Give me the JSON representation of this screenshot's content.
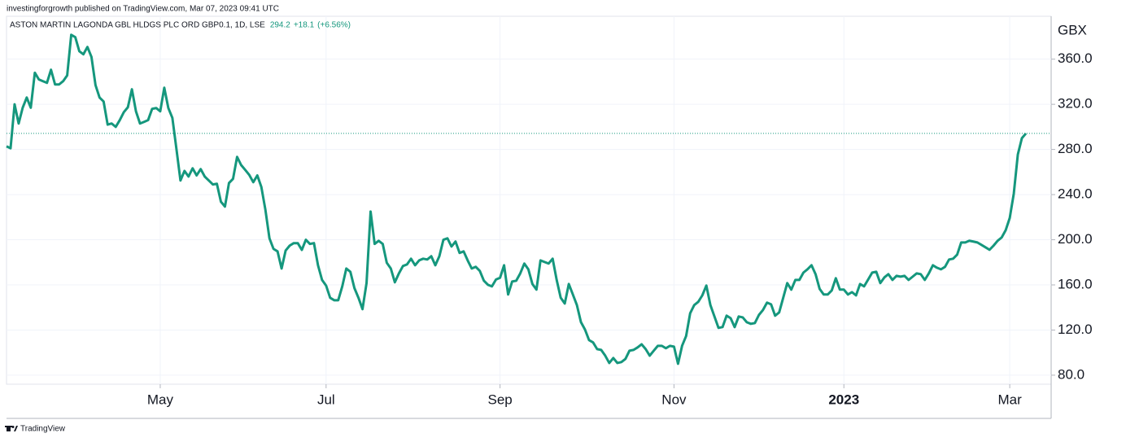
{
  "header": "investingforgrowth published on TradingView.com, Mar 07, 2023 09:41 UTC",
  "legend": {
    "symbol": "ASTON MARTIN LAGONDA GBL HLDGS PLC ORD GBP0.1, 1D, LSE",
    "price": "294.2",
    "change": "+18.1",
    "change_pct": "(+6.56%)"
  },
  "footer": "TradingView",
  "chart_data": {
    "type": "line",
    "ylabel": "GBX",
    "categories": [
      null,
      null,
      null,
      null,
      null,
      null,
      null,
      null,
      null,
      null,
      null,
      null,
      null,
      null,
      null,
      null,
      null,
      null,
      null,
      null,
      null,
      null,
      null,
      null,
      null,
      null,
      null,
      null,
      null,
      null,
      null,
      null,
      null,
      null,
      null,
      null,
      null,
      null,
      "May",
      null,
      null,
      null,
      null,
      null,
      null,
      null,
      null,
      null,
      null,
      null,
      null,
      null,
      null,
      null,
      null,
      null,
      null,
      null,
      null,
      null,
      null,
      null,
      null,
      null,
      null,
      null,
      null,
      null,
      null,
      null,
      null,
      null,
      null,
      null,
      null,
      null,
      null,
      null,
      null,
      "Jul",
      null,
      null,
      null,
      null,
      null,
      null,
      null,
      null,
      null,
      null,
      null,
      null,
      null,
      null,
      null,
      null,
      null,
      null,
      null,
      null,
      null,
      null,
      null,
      null,
      null,
      null,
      null,
      null,
      null,
      null,
      null,
      null,
      null,
      null,
      null,
      null,
      null,
      null,
      null,
      null,
      null,
      null,
      "Sep",
      null,
      null,
      null,
      null,
      null,
      null,
      null,
      null,
      null,
      null,
      null,
      null,
      null,
      null,
      null,
      null,
      null,
      null,
      null,
      null,
      null,
      null,
      null,
      null,
      null,
      null,
      null,
      null,
      null,
      null,
      null,
      null,
      null,
      null,
      null,
      null,
      null,
      null,
      null,
      null,
      null,
      null,
      "Nov",
      null,
      null,
      null,
      null,
      null,
      null,
      null,
      null,
      null,
      null,
      null,
      null,
      null,
      null,
      null,
      null,
      null,
      null,
      null,
      null,
      null,
      null,
      null,
      null,
      null,
      null,
      null,
      null,
      null,
      null,
      null,
      null,
      null,
      null,
      null,
      null,
      null,
      null,
      null,
      null,
      null,
      "2023",
      null,
      null,
      null,
      null,
      null,
      null,
      null,
      null,
      null,
      null,
      null,
      null,
      null,
      null,
      null,
      null,
      null,
      null,
      null,
      null,
      null,
      null,
      null,
      null,
      null,
      null,
      null,
      null,
      null,
      null,
      null,
      null,
      null,
      null,
      null,
      null,
      null,
      null,
      null,
      null,
      "Mar",
      null,
      null,
      null,
      null
    ],
    "series": [
      {
        "name": "ASTON MARTIN LAGONDA GBL HLDGS PLC ORD GBP0.1",
        "color": "#15977d",
        "values": [
          282.8,
          281,
          320,
          303,
          317,
          326,
          317,
          348,
          342,
          340.5,
          339,
          350.6,
          337.6,
          337.6,
          340.5,
          345.6,
          381.6,
          379.5,
          367,
          364.3,
          370.8,
          362,
          337,
          326,
          322.5,
          302,
          303,
          300,
          306,
          313,
          317.4,
          333.3,
          313.8,
          303,
          304.4,
          306,
          316,
          316.7,
          313.8,
          334.7,
          316.7,
          308,
          280.6,
          252.5,
          261,
          256,
          263.3,
          257,
          262.6,
          256,
          252.5,
          249,
          249.6,
          233.7,
          229.4,
          250.3,
          254,
          273.4,
          266.2,
          261.9,
          257.5,
          251,
          257,
          246.7,
          226.5,
          201.3,
          191.9,
          189.7,
          174.5,
          190.4,
          194.8,
          197,
          197,
          191,
          200,
          196.3,
          197,
          177.4,
          164.4,
          159.4,
          148.6,
          146.4,
          146.4,
          158.7,
          174.5,
          171.6,
          157.2,
          148.6,
          138.5,
          161.6,
          225,
          196.3,
          199.1,
          196.3,
          179.6,
          174.5,
          162.3,
          170.2,
          176.7,
          178.1,
          183.2,
          177.4,
          181.7,
          183.2,
          182.5,
          185.4,
          177.4,
          185.4,
          200,
          201.3,
          194,
          198.4,
          188.3,
          189.7,
          181.7,
          174.5,
          176,
          172.4,
          163.7,
          160.1,
          158.7,
          164.8,
          166.3,
          177.4,
          151.5,
          163,
          163.7,
          170.2,
          178.9,
          173.8,
          160.8,
          155.8,
          181.7,
          180.3,
          178.9,
          183.2,
          164.4,
          148.6,
          143.5,
          160.8,
          151.5,
          142.1,
          127,
          120.4,
          111.1,
          109,
          103.1,
          102.4,
          97.3,
          90.8,
          95.2,
          90.8,
          91.6,
          94.4,
          101.7,
          102.4,
          104.6,
          107.4,
          103.1,
          97.3,
          101.7,
          106,
          106,
          103.9,
          106,
          105.3,
          90.1,
          106,
          114.7,
          134.9,
          142.1,
          145,
          150.7,
          159.4,
          142.1,
          132,
          121.9,
          122.6,
          132.7,
          130.5,
          122.6,
          132,
          131.2,
          126.9,
          125.5,
          126.2,
          133.4,
          137.8,
          144.3,
          142.8,
          132.7,
          135.6,
          148.6,
          161.6,
          155.8,
          164.4,
          164.4,
          170.9,
          173.8,
          177.4,
          169.5,
          156.5,
          151.5,
          151.5,
          155.1,
          165.9,
          155.8,
          155.8,
          151.5,
          153.6,
          150.7,
          160.8,
          158.7,
          164.8,
          170.9,
          171.6,
          161.6,
          166.6,
          169.5,
          164.4,
          168,
          167.3,
          168,
          164.4,
          167.3,
          170.2,
          169.5,
          164.4,
          170.2,
          177.4,
          175.2,
          173.8,
          176,
          182.5,
          183.2,
          186.8,
          197.6,
          197.6,
          199.1,
          198.4,
          197.6,
          195.5,
          193.3,
          191.1,
          194.8,
          199.1,
          202,
          208.5,
          219.3,
          240.9,
          275.6,
          290,
          294.2
        ]
      }
    ],
    "ylim": [
      72,
      398
    ],
    "yticks": [
      {
        "value": 80,
        "label": "80.0"
      },
      {
        "value": 120,
        "label": "120.0"
      },
      {
        "value": 160,
        "label": "160.0"
      },
      {
        "value": 200,
        "label": "200.0"
      },
      {
        "value": 240,
        "label": "240.0"
      },
      {
        "value": 280,
        "label": "280.0"
      },
      {
        "value": 320,
        "label": "320.0"
      },
      {
        "value": 360,
        "label": "360.0"
      }
    ],
    "grid": true
  }
}
